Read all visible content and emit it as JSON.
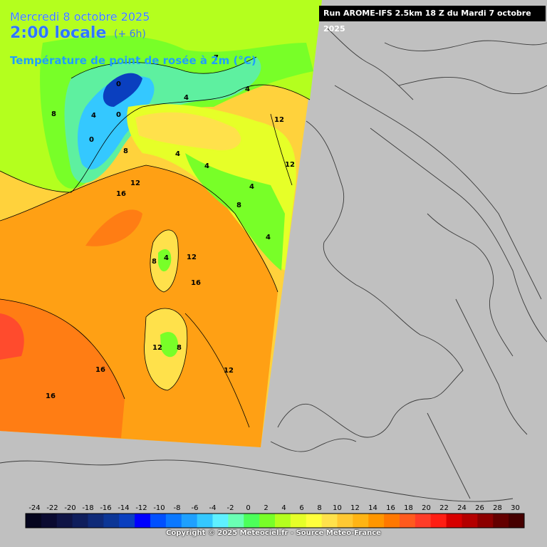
{
  "header": {
    "date": "Mercredi 8 octobre 2025",
    "time": "2:00 locale",
    "offset": "(+ 6h)",
    "parameter": "Température de point de rosée à 2m (°C)",
    "run": "Run AROME-IFS 2.5km 18 Z du Mardi 7 octobre 2025"
  },
  "contour_labels": [
    "0",
    "4",
    "0",
    "8",
    "4",
    "0",
    "12",
    "16",
    "4",
    "4",
    "8",
    "12",
    "4",
    "8",
    "4",
    "8",
    "12",
    "16",
    "12",
    "8",
    "12",
    "16",
    "16",
    "4",
    "4",
    "7",
    "12"
  ],
  "legend": {
    "ticks": [
      "-24",
      "-22",
      "-20",
      "-18",
      "-16",
      "-14",
      "-12",
      "-10",
      "-8",
      "-6",
      "-4",
      "-2",
      "0",
      "2",
      "4",
      "6",
      "8",
      "10",
      "12",
      "14",
      "16",
      "18",
      "20",
      "22",
      "24",
      "26",
      "28",
      "30"
    ],
    "colors": [
      "#05051e",
      "#0a0a30",
      "#0f1445",
      "#0f1e5c",
      "#0f2a78",
      "#0c3696",
      "#0a3fbf",
      "#0000ff",
      "#0050ff",
      "#0a78ff",
      "#1ea0ff",
      "#34c8ff",
      "#5ef0ff",
      "#6affb4",
      "#4cff5a",
      "#78ff28",
      "#b4ff1e",
      "#e6ff28",
      "#ffff3c",
      "#ffe14b",
      "#ffc832",
      "#ffb414",
      "#ff9600",
      "#ff7800",
      "#ff5a1e",
      "#ff3c28",
      "#ff1e14",
      "#d70000",
      "#b40000",
      "#8c0000",
      "#640000",
      "#460000"
    ]
  },
  "copyright": "Copyright © 2025 Meteociel.fr - Source Meteo-France"
}
